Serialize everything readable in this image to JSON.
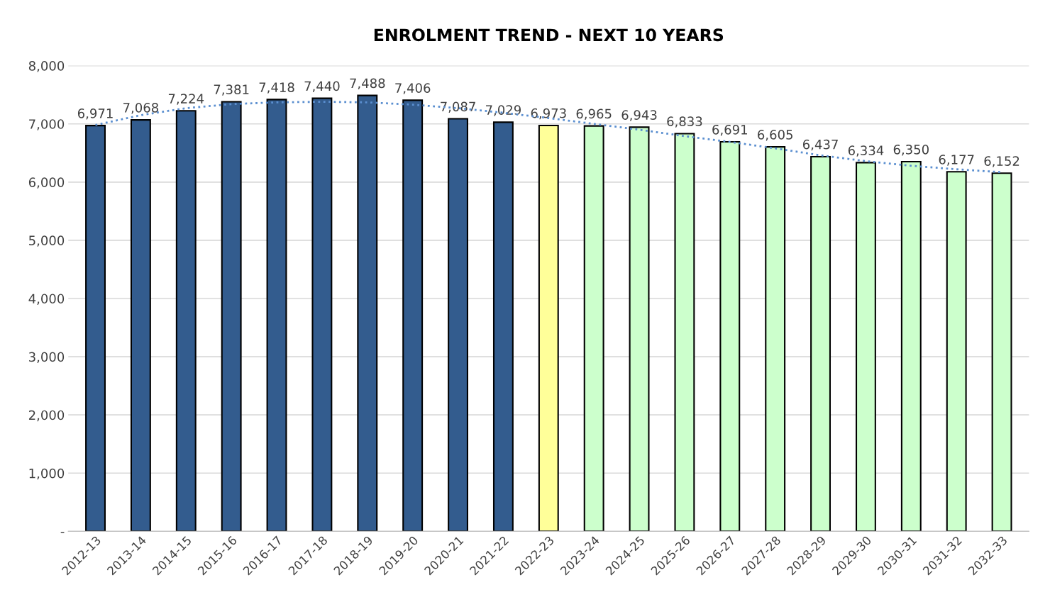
{
  "chart_data": {
    "type": "bar",
    "title": "ENROLMENT TREND - NEXT 10 YEARS",
    "categories": [
      "2012-13",
      "2013-14",
      "2014-15",
      "2015-16",
      "2016-17",
      "2017-18",
      "2018-19",
      "2019-20",
      "2020-21",
      "2021-22",
      "2022-23",
      "2023-24",
      "2024-25",
      "2025-26",
      "2026-27",
      "2027-28",
      "2028-29",
      "2029-30",
      "2030-31",
      "2031-32",
      "2032-33"
    ],
    "series": [
      {
        "values": [
          6971,
          7068,
          7224,
          7381,
          7418,
          7440,
          7488,
          7406,
          7087,
          7029,
          6973,
          6965,
          6943,
          6833,
          6691,
          6605,
          6437,
          6334,
          6350,
          6177,
          6152
        ],
        "colors": [
          "#335c8e",
          "#335c8e",
          "#335c8e",
          "#335c8e",
          "#335c8e",
          "#335c8e",
          "#335c8e",
          "#335c8e",
          "#335c8e",
          "#335c8e",
          "#ffff99",
          "#ccffcc",
          "#ccffcc",
          "#ccffcc",
          "#ccffcc",
          "#ccffcc",
          "#ccffcc",
          "#ccffcc",
          "#ccffcc",
          "#ccffcc",
          "#ccffcc"
        ],
        "value_labels": [
          "6,971",
          "7,068",
          "7,224",
          "7,381",
          "7,418",
          "7,440",
          "7,488",
          "7,406",
          "7,087",
          "7,029",
          "6,973",
          "6,965",
          "6,943",
          "6,833",
          "6,691",
          "6,605",
          "6,437",
          "6,334",
          "6,350",
          "6,177",
          "6,152"
        ]
      },
      {
        "type": "line",
        "color": "#5b8fd0",
        "line_style": "dotted",
        "x": [
          "2012-13",
          "2013-14",
          "2014-15",
          "2015-16",
          "2016-17",
          "2017-18",
          "2018-19",
          "2019-20",
          "2020-21",
          "2021-22",
          "2022-23",
          "2023-24",
          "2024-25",
          "2025-26",
          "2026-27",
          "2027-28",
          "2028-29",
          "2029-30",
          "2030-31",
          "2031-32",
          "2032-33"
        ],
        "values": [
          6980,
          7150,
          7270,
          7340,
          7370,
          7380,
          7370,
          7330,
          7270,
          7190,
          7100,
          7000,
          6900,
          6790,
          6690,
          6580,
          6460,
          6360,
          6280,
          6220,
          6170
        ]
      }
    ],
    "ylim": [
      0,
      8000
    ],
    "yticks": [
      {
        "value": 0,
        "label": "-"
      },
      {
        "value": 1000,
        "label": "1,000"
      },
      {
        "value": 2000,
        "label": "2,000"
      },
      {
        "value": 3000,
        "label": "3,000"
      },
      {
        "value": 4000,
        "label": "4,000"
      },
      {
        "value": 5000,
        "label": "5,000"
      },
      {
        "value": 6000,
        "label": "6,000"
      },
      {
        "value": 7000,
        "label": "7,000"
      },
      {
        "value": 8000,
        "label": "8,000"
      }
    ],
    "grid": "y"
  }
}
